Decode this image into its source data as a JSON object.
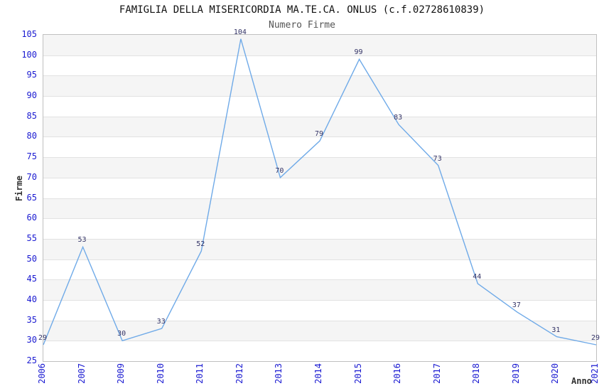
{
  "title": "FAMIGLIA DELLA MISERICORDIA MA.TE.CA. ONLUS (c.f.02728610839)",
  "subtitle": "Numero Firme",
  "chart_data": {
    "type": "line",
    "categories": [
      "2006",
      "2007",
      "2009",
      "2010",
      "2011",
      "2012",
      "2013",
      "2014",
      "2015",
      "2016",
      "2017",
      "2018",
      "2019",
      "2020",
      "2021"
    ],
    "values": [
      29,
      53,
      30,
      33,
      52,
      104,
      70,
      79,
      99,
      83,
      73,
      44,
      37,
      31,
      29
    ],
    "data_labels_visible": true,
    "title": "FAMIGLIA DELLA MISERICORDIA MA.TE.CA. ONLUS (c.f.02728610839)",
    "subtitle": "Numero Firme",
    "xlabel": "Anno",
    "ylabel": "Firme",
    "ylim": [
      25,
      105
    ],
    "ytick_step": 5,
    "grid": "horizontal-bands-every-5",
    "legend": "none",
    "colors": {
      "line": "#6faae8",
      "tick_label": "#1a1ad1",
      "data_label": "#333366",
      "band_fill": "#f5f5f5",
      "grid_line": "#e2e2e2",
      "plot_border": "#c0c0c0",
      "title": "#111111",
      "subtitle": "#555555",
      "axis_title": "#333333"
    }
  }
}
